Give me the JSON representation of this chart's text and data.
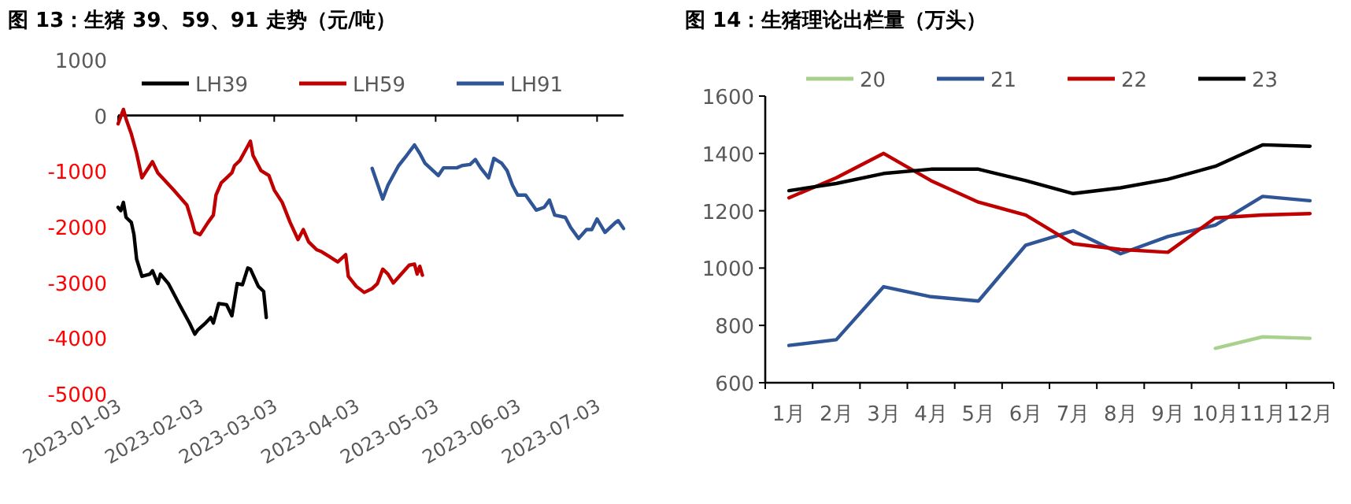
{
  "chart_data": [
    {
      "type": "line",
      "title": "图 13：生猪 39、59、91 走势（元/吨）",
      "legend": "top",
      "xlim": [
        "2023-01-03",
        "2023-07-13"
      ],
      "xticks": [
        "2023-01-03",
        "2023-02-03",
        "2023-03-03",
        "2023-04-03",
        "2023-05-03",
        "2023-06-03",
        "2023-07-03"
      ],
      "ylim": [
        -5000,
        1000
      ],
      "yticks": [
        -5000,
        -4000,
        -3000,
        -2000,
        -1000,
        0,
        1000
      ],
      "series": [
        {
          "name": "LH39",
          "color": "#000000",
          "x": [
            "2023-01-03",
            "2023-01-04",
            "2023-01-05",
            "2023-01-06",
            "2023-01-08",
            "2023-01-09",
            "2023-01-10",
            "2023-01-12",
            "2023-01-15",
            "2023-01-16",
            "2023-01-18",
            "2023-01-19",
            "2023-01-22",
            "2023-01-26",
            "2023-01-30",
            "2023-02-01",
            "2023-02-02",
            "2023-02-05",
            "2023-02-07",
            "2023-02-08",
            "2023-02-10",
            "2023-02-13",
            "2023-02-15",
            "2023-02-17",
            "2023-02-19",
            "2023-02-21",
            "2023-02-22",
            "2023-02-25",
            "2023-02-27",
            "2023-02-28"
          ],
          "values": [
            -1650,
            -1710,
            -1560,
            -1830,
            -1920,
            -2140,
            -2580,
            -2890,
            -2850,
            -2790,
            -3020,
            -2850,
            -3020,
            -3380,
            -3730,
            -3930,
            -3860,
            -3730,
            -3630,
            -3730,
            -3380,
            -3400,
            -3600,
            -3020,
            -3040,
            -2740,
            -2760,
            -3070,
            -3160,
            -3630
          ]
        },
        {
          "name": "LH59",
          "color": "#c00000",
          "x": [
            "2023-01-03",
            "2023-01-05",
            "2023-01-06",
            "2023-01-08",
            "2023-01-10",
            "2023-01-12",
            "2023-01-16",
            "2023-01-18",
            "2023-01-24",
            "2023-01-29",
            "2023-01-31",
            "2023-02-01",
            "2023-02-03",
            "2023-02-06",
            "2023-02-08",
            "2023-02-09",
            "2023-02-11",
            "2023-02-13",
            "2023-02-15",
            "2023-02-16",
            "2023-02-18",
            "2023-02-21",
            "2023-02-22",
            "2023-02-23",
            "2023-02-26",
            "2023-03-01",
            "2023-03-03",
            "2023-03-06",
            "2023-03-09",
            "2023-03-12",
            "2023-03-14",
            "2023-03-16",
            "2023-03-19",
            "2023-03-21",
            "2023-03-24",
            "2023-03-27",
            "2023-03-30",
            "2023-03-31",
            "2023-04-03",
            "2023-04-06",
            "2023-04-09",
            "2023-04-11",
            "2023-04-13",
            "2023-04-15",
            "2023-04-17",
            "2023-04-20",
            "2023-04-23",
            "2023-04-25",
            "2023-04-26",
            "2023-04-27",
            "2023-04-28"
          ],
          "values": [
            -150,
            110,
            -60,
            -330,
            -680,
            -1120,
            -830,
            -1030,
            -1340,
            -1610,
            -1920,
            -2100,
            -2140,
            -1920,
            -1790,
            -1430,
            -1210,
            -1120,
            -1030,
            -900,
            -810,
            -550,
            -460,
            -720,
            -990,
            -1080,
            -1340,
            -1560,
            -1920,
            -2230,
            -2050,
            -2270,
            -2410,
            -2450,
            -2540,
            -2630,
            -2500,
            -2890,
            -3070,
            -3180,
            -3110,
            -3020,
            -2760,
            -2850,
            -3010,
            -2850,
            -2690,
            -2670,
            -2850,
            -2710,
            -2870
          ]
        },
        {
          "name": "LH91",
          "color": "#2f5597",
          "x": [
            "2023-04-09",
            "2023-04-13",
            "2023-04-15",
            "2023-04-19",
            "2023-04-22",
            "2023-04-25",
            "2023-04-27",
            "2023-04-29",
            "2023-05-04",
            "2023-05-06",
            "2023-05-11",
            "2023-05-13",
            "2023-05-16",
            "2023-05-18",
            "2023-05-20",
            "2023-05-23",
            "2023-05-25",
            "2023-05-28",
            "2023-05-30",
            "2023-06-01",
            "2023-06-03",
            "2023-06-06",
            "2023-06-10",
            "2023-06-13",
            "2023-06-15",
            "2023-06-17",
            "2023-06-21",
            "2023-06-23",
            "2023-06-26",
            "2023-06-29",
            "2023-07-01",
            "2023-07-03",
            "2023-07-06",
            "2023-07-10",
            "2023-07-11",
            "2023-07-13"
          ],
          "values": [
            -950,
            -1500,
            -1250,
            -900,
            -720,
            -530,
            -680,
            -860,
            -1080,
            -940,
            -940,
            -900,
            -880,
            -790,
            -940,
            -1120,
            -770,
            -860,
            -990,
            -1250,
            -1430,
            -1430,
            -1700,
            -1650,
            -1520,
            -1790,
            -1830,
            -2010,
            -2210,
            -2050,
            -2050,
            -1860,
            -2100,
            -1920,
            -1890,
            -2030
          ]
        }
      ]
    },
    {
      "type": "line",
      "title": "图 14：生猪理论出栏量（万头）",
      "legend": "top",
      "categories": [
        "1月",
        "2月",
        "3月",
        "4月",
        "5月",
        "6月",
        "7月",
        "8月",
        "9月",
        "10月",
        "11月",
        "12月"
      ],
      "ylim": [
        600,
        1600
      ],
      "yticks": [
        600,
        800,
        1000,
        1200,
        1400,
        1600
      ],
      "series": [
        {
          "name": "20",
          "color": "#a9d18e",
          "values": [
            null,
            null,
            null,
            null,
            null,
            null,
            null,
            null,
            null,
            720,
            760,
            755
          ]
        },
        {
          "name": "21",
          "color": "#2f5597",
          "values": [
            730,
            750,
            935,
            900,
            885,
            1080,
            1130,
            1050,
            1110,
            1150,
            1250,
            1235
          ]
        },
        {
          "name": "22",
          "color": "#c00000",
          "values": [
            1245,
            1315,
            1400,
            1305,
            1230,
            1185,
            1085,
            1065,
            1055,
            1175,
            1185,
            1190
          ]
        },
        {
          "name": "23",
          "color": "#000000",
          "values": [
            1270,
            1295,
            1330,
            1345,
            1345,
            1305,
            1260,
            1280,
            1310,
            1355,
            1430,
            1425
          ]
        }
      ]
    }
  ]
}
